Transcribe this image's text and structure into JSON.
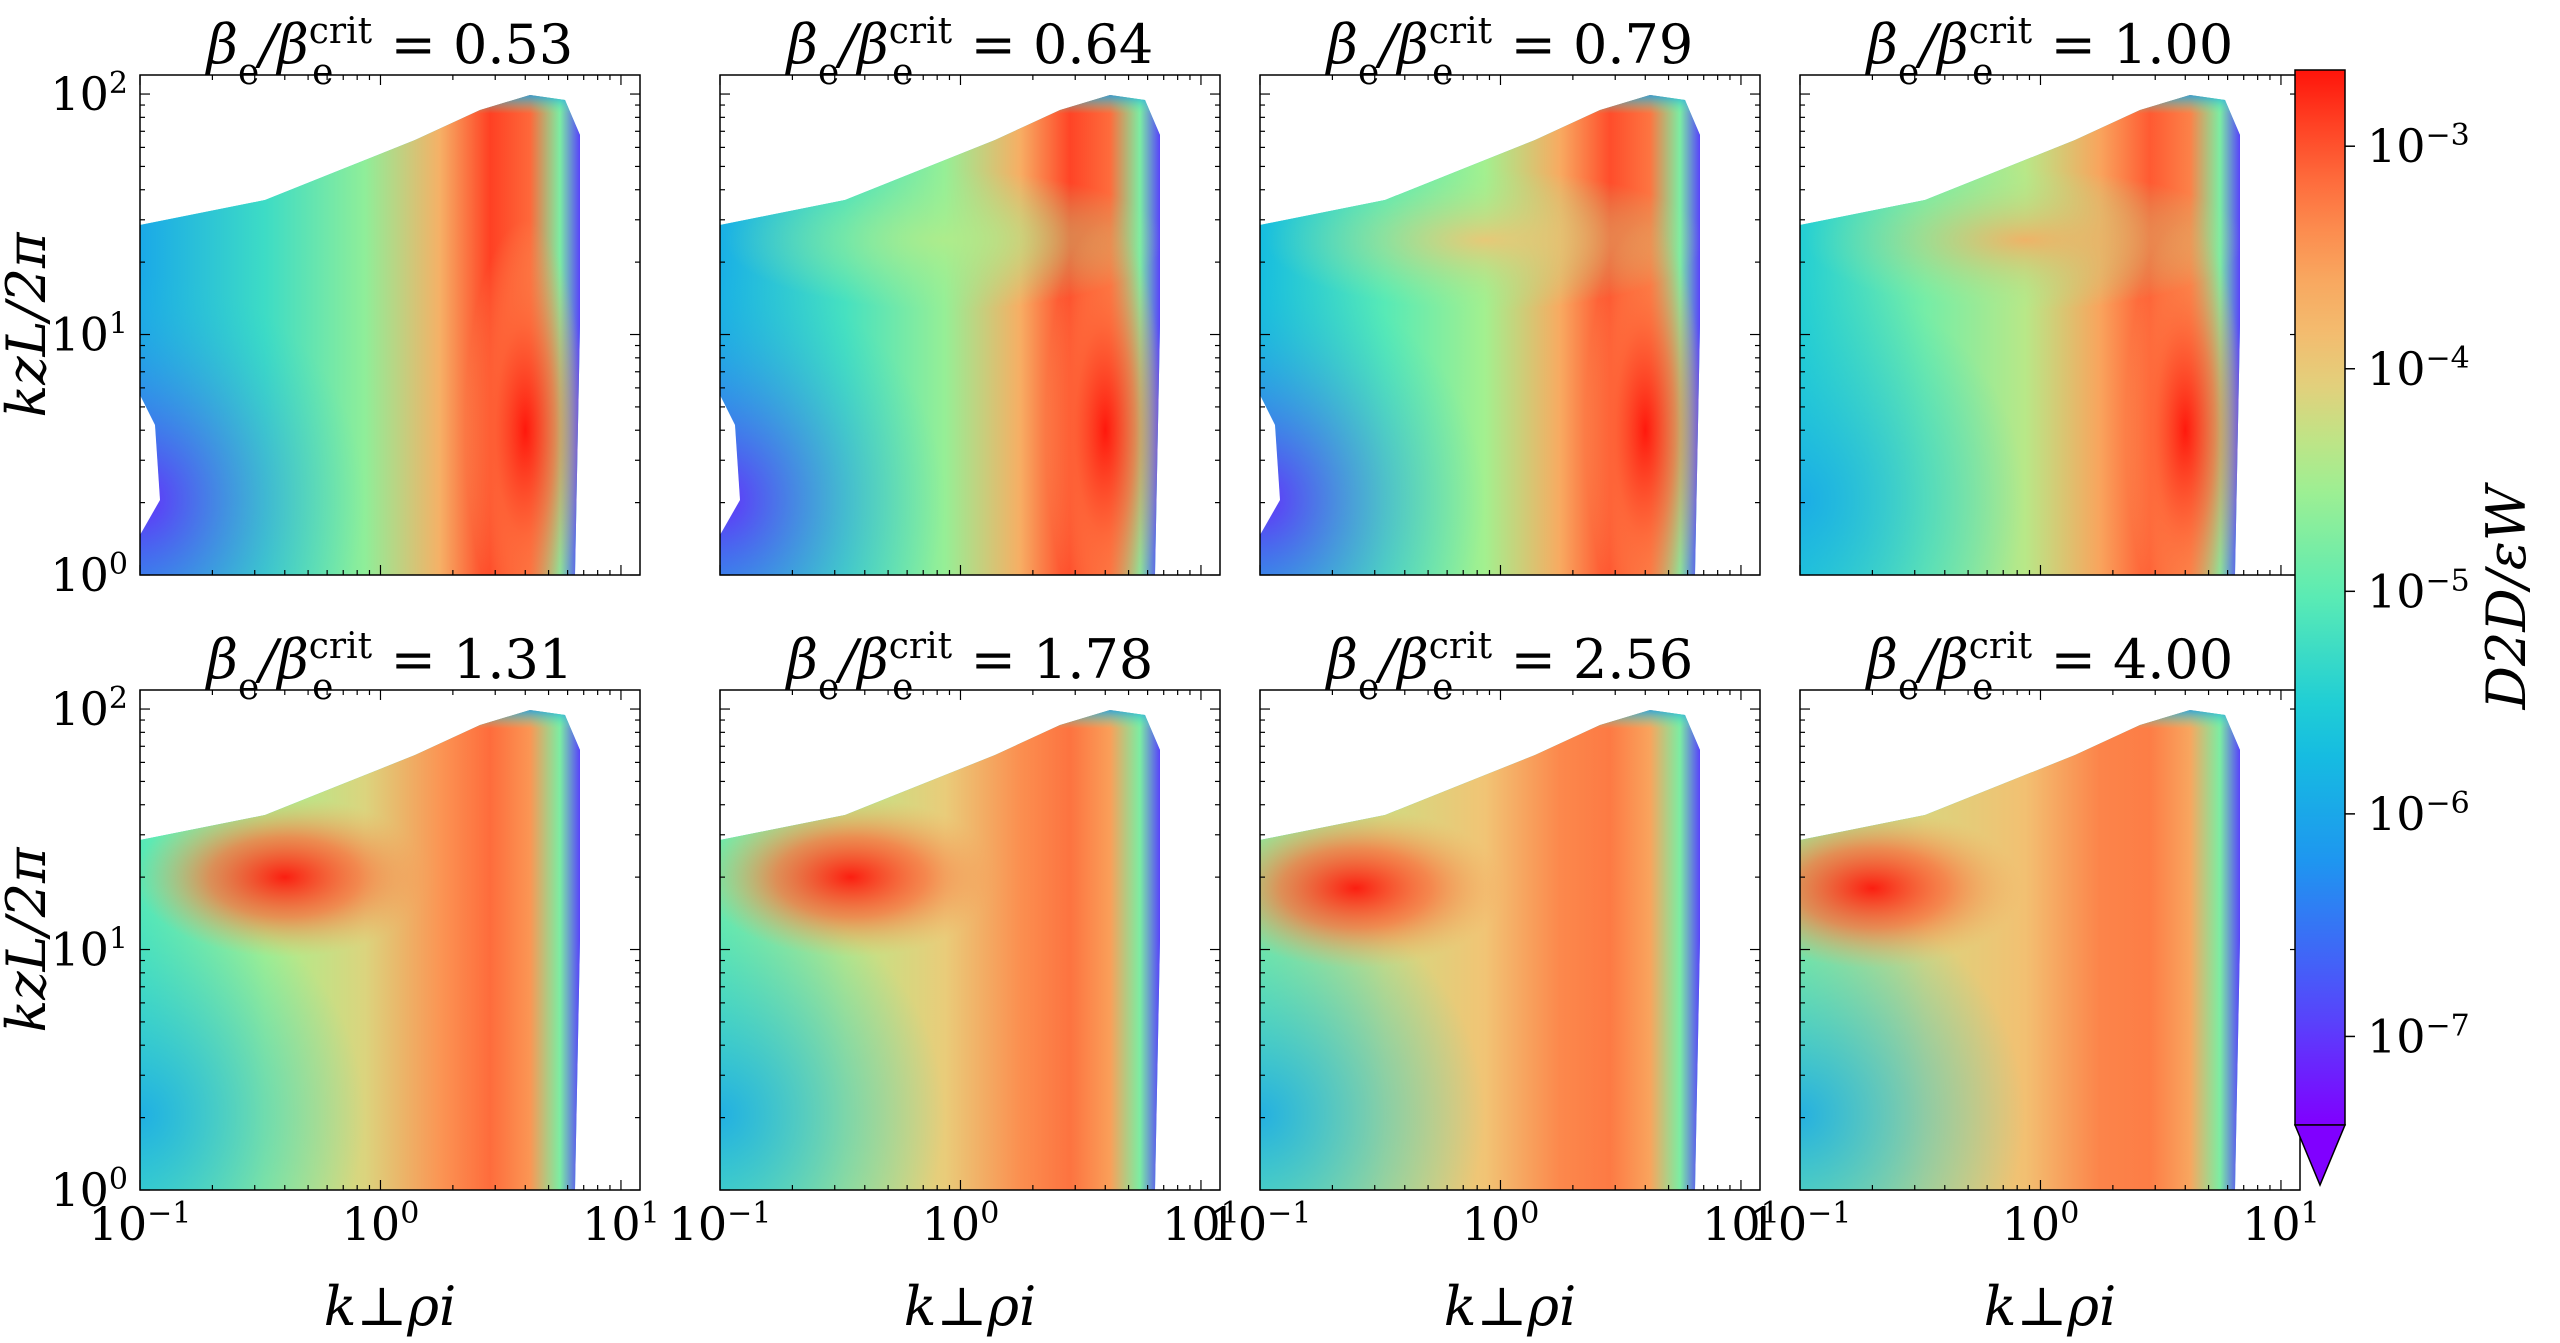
{
  "chart_data": {
    "type": "heatmap",
    "layout": {
      "rows": 2,
      "cols": 4
    },
    "xlabel": "k⊥ρi",
    "ylabel": "kzL/2π",
    "x_scale": "log",
    "y_scale": "log",
    "xlim": [
      0.1,
      12
    ],
    "ylim": [
      1,
      120
    ],
    "x_tick_labels": [
      "10−1",
      "100",
      "101"
    ],
    "y_tick_labels": [
      "100",
      "101",
      "102"
    ],
    "colorbar": {
      "label": "D2D/εW",
      "scale": "log",
      "colormap": "rainbow",
      "range": [
        4e-08,
        0.0022
      ],
      "extend": "min",
      "tick_labels": [
        "10−3",
        "10−4",
        "10−5",
        "10−6",
        "10−7"
      ]
    },
    "panels": [
      {
        "ratio": "0.53",
        "peak_kperp": 4.0,
        "peak_kz": 4,
        "ridge_level": 0.0,
        "blob_level": 0.0,
        "hole": true
      },
      {
        "ratio": "0.64",
        "peak_kperp": 4.0,
        "peak_kz": 4,
        "ridge_level": 0.05,
        "blob_level": 0.1,
        "hole": true
      },
      {
        "ratio": "0.79",
        "peak_kperp": 4.0,
        "peak_kz": 4,
        "ridge_level": 0.15,
        "blob_level": 0.45,
        "hole": true
      },
      {
        "ratio": "1.00",
        "peak_kperp": 4.0,
        "peak_kz": 4,
        "ridge_level": 0.3,
        "blob_level": 0.65,
        "hole": false
      },
      {
        "ratio": "1.31",
        "peak_kperp": 0.4,
        "peak_kz": 20,
        "ridge_level": 0.55,
        "blob_level": 1.0,
        "hole": false
      },
      {
        "ratio": "1.78",
        "peak_kperp": 0.35,
        "peak_kz": 20,
        "ridge_level": 0.65,
        "blob_level": 1.0,
        "hole": false
      },
      {
        "ratio": "2.56",
        "peak_kperp": 0.25,
        "peak_kz": 18,
        "ridge_level": 0.75,
        "blob_level": 1.0,
        "hole": false
      },
      {
        "ratio": "4.00",
        "peak_kperp": 0.2,
        "peak_kz": 18,
        "ridge_level": 0.8,
        "blob_level": 0.95,
        "hole": false
      }
    ]
  }
}
